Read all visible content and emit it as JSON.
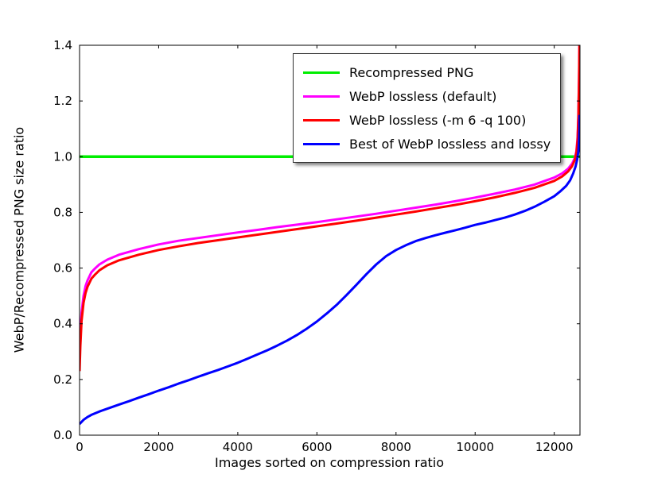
{
  "figure": {
    "background": "#ffffff"
  },
  "chart_data": {
    "type": "line",
    "title": "",
    "xlabel": "Images sorted on compression ratio",
    "ylabel": "WebP/Recompressed PNG size ratio",
    "xlim": [
      0,
      12650
    ],
    "ylim": [
      0,
      1.4
    ],
    "xticks": [
      0,
      2000,
      4000,
      6000,
      8000,
      10000,
      12000
    ],
    "xtick_labels": [
      "0",
      "2000",
      "4000",
      "6000",
      "8000",
      "10000",
      "12000"
    ],
    "yticks": [
      0,
      0.2,
      0.4,
      0.6,
      0.8,
      1.0,
      1.2,
      1.4
    ],
    "ytick_labels": [
      "0.0",
      "0.2",
      "0.4",
      "0.6",
      "0.8",
      "1.0",
      "1.2",
      "1.4"
    ],
    "grid": false,
    "legend_position": "upper right",
    "series": [
      {
        "name": "Recompressed PNG",
        "color": "#00ee00",
        "line_width": 3.5,
        "points": [
          [
            0,
            1.0
          ],
          [
            12650,
            1.0
          ]
        ]
      },
      {
        "name": "WebP lossless (default)",
        "color": "#ff00ff",
        "line_width": 3,
        "points": [
          [
            0,
            0.27
          ],
          [
            20,
            0.36
          ],
          [
            50,
            0.44
          ],
          [
            100,
            0.5
          ],
          [
            150,
            0.535
          ],
          [
            200,
            0.555
          ],
          [
            300,
            0.585
          ],
          [
            400,
            0.6
          ],
          [
            500,
            0.613
          ],
          [
            700,
            0.63
          ],
          [
            1000,
            0.648
          ],
          [
            1500,
            0.668
          ],
          [
            2000,
            0.685
          ],
          [
            2500,
            0.698
          ],
          [
            3000,
            0.708
          ],
          [
            3500,
            0.718
          ],
          [
            4000,
            0.728
          ],
          [
            4500,
            0.737
          ],
          [
            5000,
            0.747
          ],
          [
            5500,
            0.756
          ],
          [
            6000,
            0.765
          ],
          [
            6500,
            0.775
          ],
          [
            7000,
            0.785
          ],
          [
            7500,
            0.795
          ],
          [
            8000,
            0.806
          ],
          [
            8500,
            0.817
          ],
          [
            9000,
            0.828
          ],
          [
            9500,
            0.84
          ],
          [
            10000,
            0.853
          ],
          [
            10500,
            0.867
          ],
          [
            11000,
            0.882
          ],
          [
            11500,
            0.9
          ],
          [
            12000,
            0.925
          ],
          [
            12200,
            0.94
          ],
          [
            12350,
            0.957
          ],
          [
            12450,
            0.975
          ],
          [
            12520,
            0.995
          ],
          [
            12560,
            1.02
          ],
          [
            12590,
            1.07
          ],
          [
            12610,
            1.15
          ],
          [
            12625,
            1.28
          ],
          [
            12635,
            1.4
          ]
        ]
      },
      {
        "name": "WebP lossless (-m 6 -q 100)",
        "color": "#ff0000",
        "line_width": 3,
        "points": [
          [
            0,
            0.23
          ],
          [
            20,
            0.32
          ],
          [
            50,
            0.41
          ],
          [
            100,
            0.475
          ],
          [
            150,
            0.51
          ],
          [
            200,
            0.532
          ],
          [
            300,
            0.562
          ],
          [
            400,
            0.578
          ],
          [
            500,
            0.592
          ],
          [
            700,
            0.61
          ],
          [
            1000,
            0.628
          ],
          [
            1500,
            0.648
          ],
          [
            2000,
            0.665
          ],
          [
            2500,
            0.678
          ],
          [
            3000,
            0.69
          ],
          [
            3500,
            0.7
          ],
          [
            4000,
            0.71
          ],
          [
            4500,
            0.72
          ],
          [
            5000,
            0.73
          ],
          [
            5500,
            0.74
          ],
          [
            6000,
            0.75
          ],
          [
            6500,
            0.76
          ],
          [
            7000,
            0.77
          ],
          [
            7500,
            0.781
          ],
          [
            8000,
            0.792
          ],
          [
            8500,
            0.803
          ],
          [
            9000,
            0.815
          ],
          [
            9500,
            0.827
          ],
          [
            10000,
            0.84
          ],
          [
            10500,
            0.854
          ],
          [
            11000,
            0.87
          ],
          [
            11500,
            0.888
          ],
          [
            12000,
            0.913
          ],
          [
            12200,
            0.929
          ],
          [
            12350,
            0.947
          ],
          [
            12450,
            0.966
          ],
          [
            12520,
            0.988
          ],
          [
            12560,
            1.013
          ],
          [
            12590,
            1.06
          ],
          [
            12610,
            1.14
          ],
          [
            12625,
            1.27
          ],
          [
            12635,
            1.4
          ]
        ]
      },
      {
        "name": "Best of WebP lossless and lossy",
        "color": "#0000ff",
        "line_width": 3,
        "points": [
          [
            0,
            0.04
          ],
          [
            100,
            0.055
          ],
          [
            200,
            0.065
          ],
          [
            300,
            0.073
          ],
          [
            500,
            0.085
          ],
          [
            700,
            0.095
          ],
          [
            1000,
            0.11
          ],
          [
            1250,
            0.122
          ],
          [
            1500,
            0.135
          ],
          [
            1750,
            0.147
          ],
          [
            2000,
            0.16
          ],
          [
            2250,
            0.172
          ],
          [
            2500,
            0.185
          ],
          [
            2750,
            0.197
          ],
          [
            3000,
            0.21
          ],
          [
            3250,
            0.222
          ],
          [
            3500,
            0.234
          ],
          [
            3750,
            0.247
          ],
          [
            4000,
            0.26
          ],
          [
            4250,
            0.275
          ],
          [
            4500,
            0.29
          ],
          [
            4750,
            0.305
          ],
          [
            5000,
            0.322
          ],
          [
            5250,
            0.34
          ],
          [
            5500,
            0.36
          ],
          [
            5750,
            0.383
          ],
          [
            6000,
            0.408
          ],
          [
            6250,
            0.437
          ],
          [
            6500,
            0.468
          ],
          [
            6750,
            0.503
          ],
          [
            7000,
            0.54
          ],
          [
            7250,
            0.578
          ],
          [
            7500,
            0.613
          ],
          [
            7750,
            0.643
          ],
          [
            8000,
            0.665
          ],
          [
            8250,
            0.682
          ],
          [
            8500,
            0.697
          ],
          [
            8750,
            0.708
          ],
          [
            9000,
            0.718
          ],
          [
            9250,
            0.727
          ],
          [
            9500,
            0.736
          ],
          [
            9750,
            0.745
          ],
          [
            10000,
            0.755
          ],
          [
            10250,
            0.763
          ],
          [
            10500,
            0.772
          ],
          [
            10750,
            0.781
          ],
          [
            11000,
            0.792
          ],
          [
            11250,
            0.805
          ],
          [
            11500,
            0.82
          ],
          [
            11750,
            0.838
          ],
          [
            12000,
            0.858
          ],
          [
            12150,
            0.875
          ],
          [
            12300,
            0.895
          ],
          [
            12400,
            0.915
          ],
          [
            12480,
            0.94
          ],
          [
            12540,
            0.965
          ],
          [
            12580,
            0.99
          ],
          [
            12610,
            1.02
          ],
          [
            12625,
            1.06
          ],
          [
            12635,
            1.1
          ],
          [
            12640,
            1.15
          ]
        ]
      }
    ]
  }
}
